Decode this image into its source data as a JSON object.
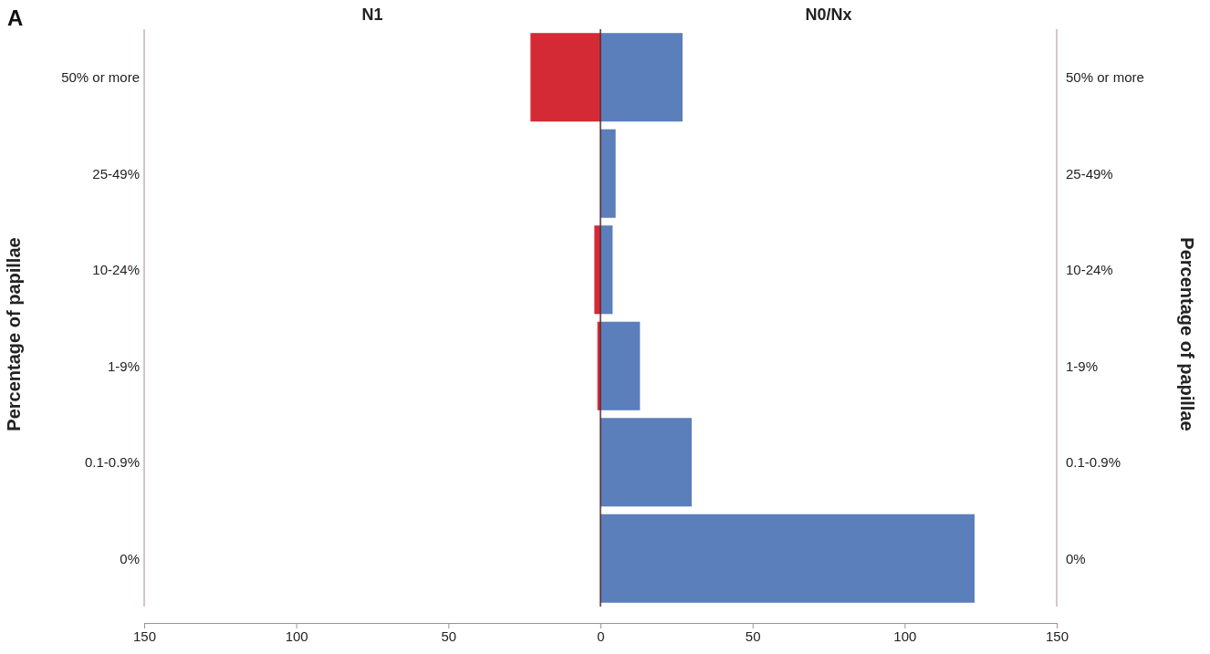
{
  "chart_data": {
    "type": "bar",
    "orientation": "horizontal",
    "stacked": true,
    "annotations": [
      "A",
      "N1",
      "N0/Nx",
      "Percentage of papillae"
    ],
    "ylabel": "Percentage of papillae",
    "categories": [
      "50% or more",
      "25-49%",
      "10-24%",
      "1-9%",
      "0.1-0.9%",
      "0%"
    ],
    "series": [
      {
        "color": "#d42a35",
        "values": [
          -23,
          0,
          -2,
          -1,
          0,
          0
        ]
      },
      {
        "color": "#5b7fbb",
        "values": [
          27,
          5,
          4,
          13,
          30,
          123
        ]
      }
    ],
    "xlim": [
      -150,
      150
    ],
    "xticks": [
      {
        "value": -150,
        "label": "150"
      },
      {
        "value": -100,
        "label": "100"
      },
      {
        "value": -50,
        "label": "50"
      },
      0,
      50,
      100,
      150
    ],
    "grid": false
  }
}
